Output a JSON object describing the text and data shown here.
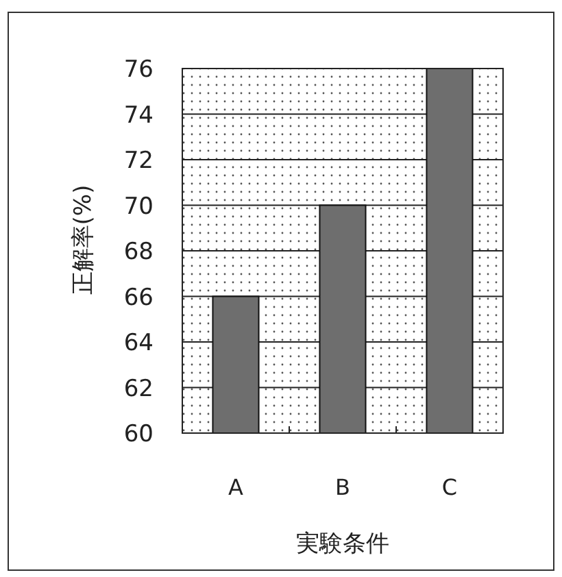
{
  "chart_data": {
    "type": "bar",
    "xlabel": "実験条件",
    "ylabel": "正解率(%)",
    "categories": [
      "A",
      "B",
      "C"
    ],
    "values": [
      66,
      70,
      76
    ],
    "color": "#6e6e6e",
    "ylim": [
      60,
      76
    ],
    "yticks": [
      60,
      62,
      64,
      66,
      68,
      70,
      72,
      74,
      76
    ],
    "grid": "y"
  }
}
